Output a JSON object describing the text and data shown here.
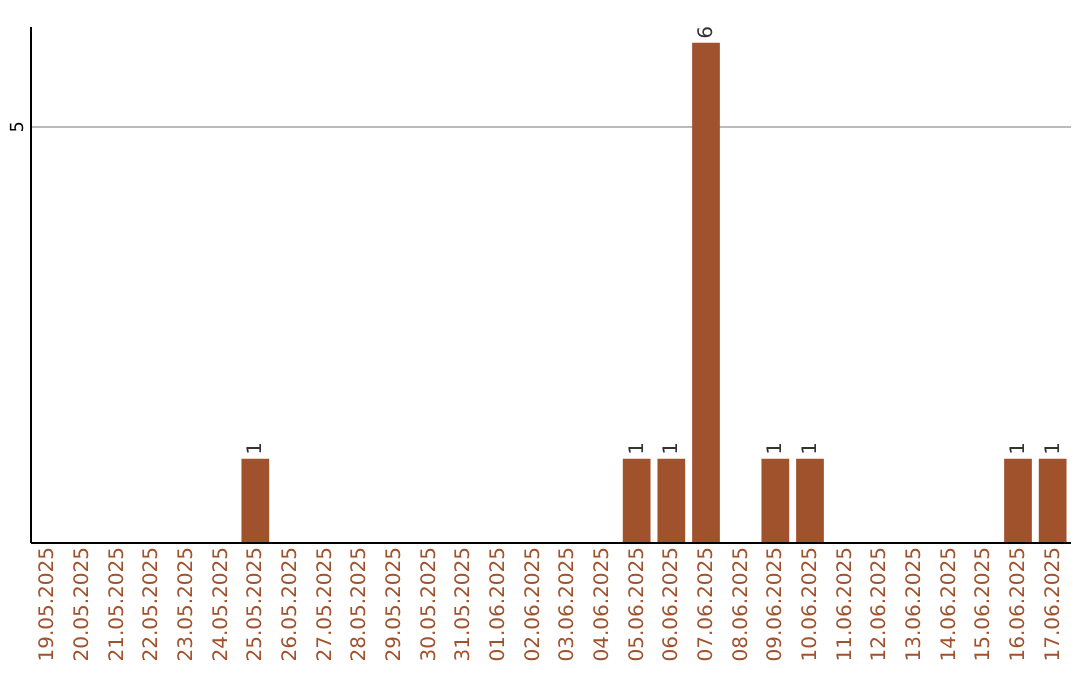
{
  "chart_data": {
    "type": "bar",
    "categories": [
      "19.05.2025",
      "20.05.2025",
      "21.05.2025",
      "22.05.2025",
      "23.05.2025",
      "24.05.2025",
      "25.05.2025",
      "26.05.2025",
      "27.05.2025",
      "28.05.2025",
      "29.05.2025",
      "30.05.2025",
      "31.05.2025",
      "01.06.2025",
      "02.06.2025",
      "03.06.2025",
      "04.06.2025",
      "05.06.2025",
      "06.06.2025",
      "07.06.2025",
      "08.06.2025",
      "09.06.2025",
      "10.06.2025",
      "11.06.2025",
      "12.06.2025",
      "13.06.2025",
      "14.06.2025",
      "15.06.2025",
      "16.06.2025",
      "17.06.2025"
    ],
    "values": [
      0,
      0,
      0,
      0,
      0,
      0,
      1,
      0,
      0,
      0,
      0,
      0,
      0,
      0,
      0,
      0,
      0,
      1,
      1,
      6,
      0,
      1,
      1,
      0,
      0,
      0,
      0,
      0,
      1,
      1
    ],
    "value_labels": [
      null,
      null,
      null,
      null,
      null,
      null,
      "1",
      null,
      null,
      null,
      null,
      null,
      null,
      null,
      null,
      null,
      null,
      "1",
      "1",
      "6",
      null,
      "1",
      "1",
      null,
      null,
      null,
      null,
      null,
      "1",
      "1"
    ],
    "color": "#a0522d",
    "ylim": [
      0,
      6.2
    ],
    "yticks": [
      5
    ],
    "grid": "y"
  }
}
